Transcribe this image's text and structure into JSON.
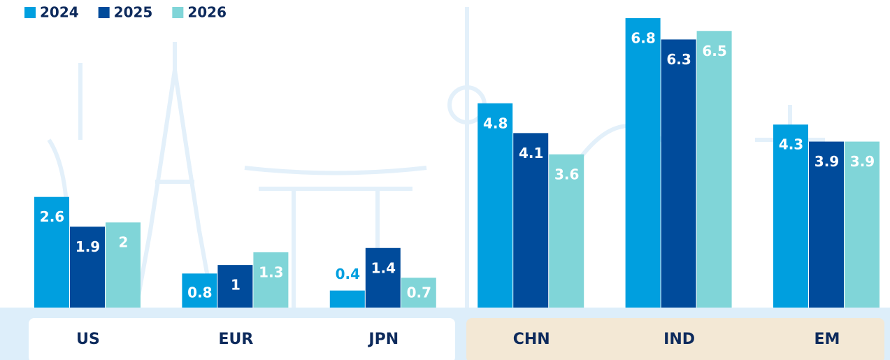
{
  "chart_data": {
    "type": "bar",
    "categories": [
      "US",
      "EUR",
      "JPN",
      "CHN",
      "IND",
      "EM"
    ],
    "series": [
      {
        "name": "2024",
        "color": "#009fdf",
        "values": [
          2.6,
          0.8,
          0.4,
          4.8,
          6.8,
          4.3
        ]
      },
      {
        "name": "2025",
        "color": "#004b9b",
        "values": [
          1.9,
          1.0,
          1.4,
          4.1,
          6.3,
          3.9
        ]
      },
      {
        "name": "2026",
        "color": "#80d5d8",
        "values": [
          2.0,
          1.3,
          0.7,
          3.6,
          6.5,
          3.9
        ]
      }
    ]
  }
}
